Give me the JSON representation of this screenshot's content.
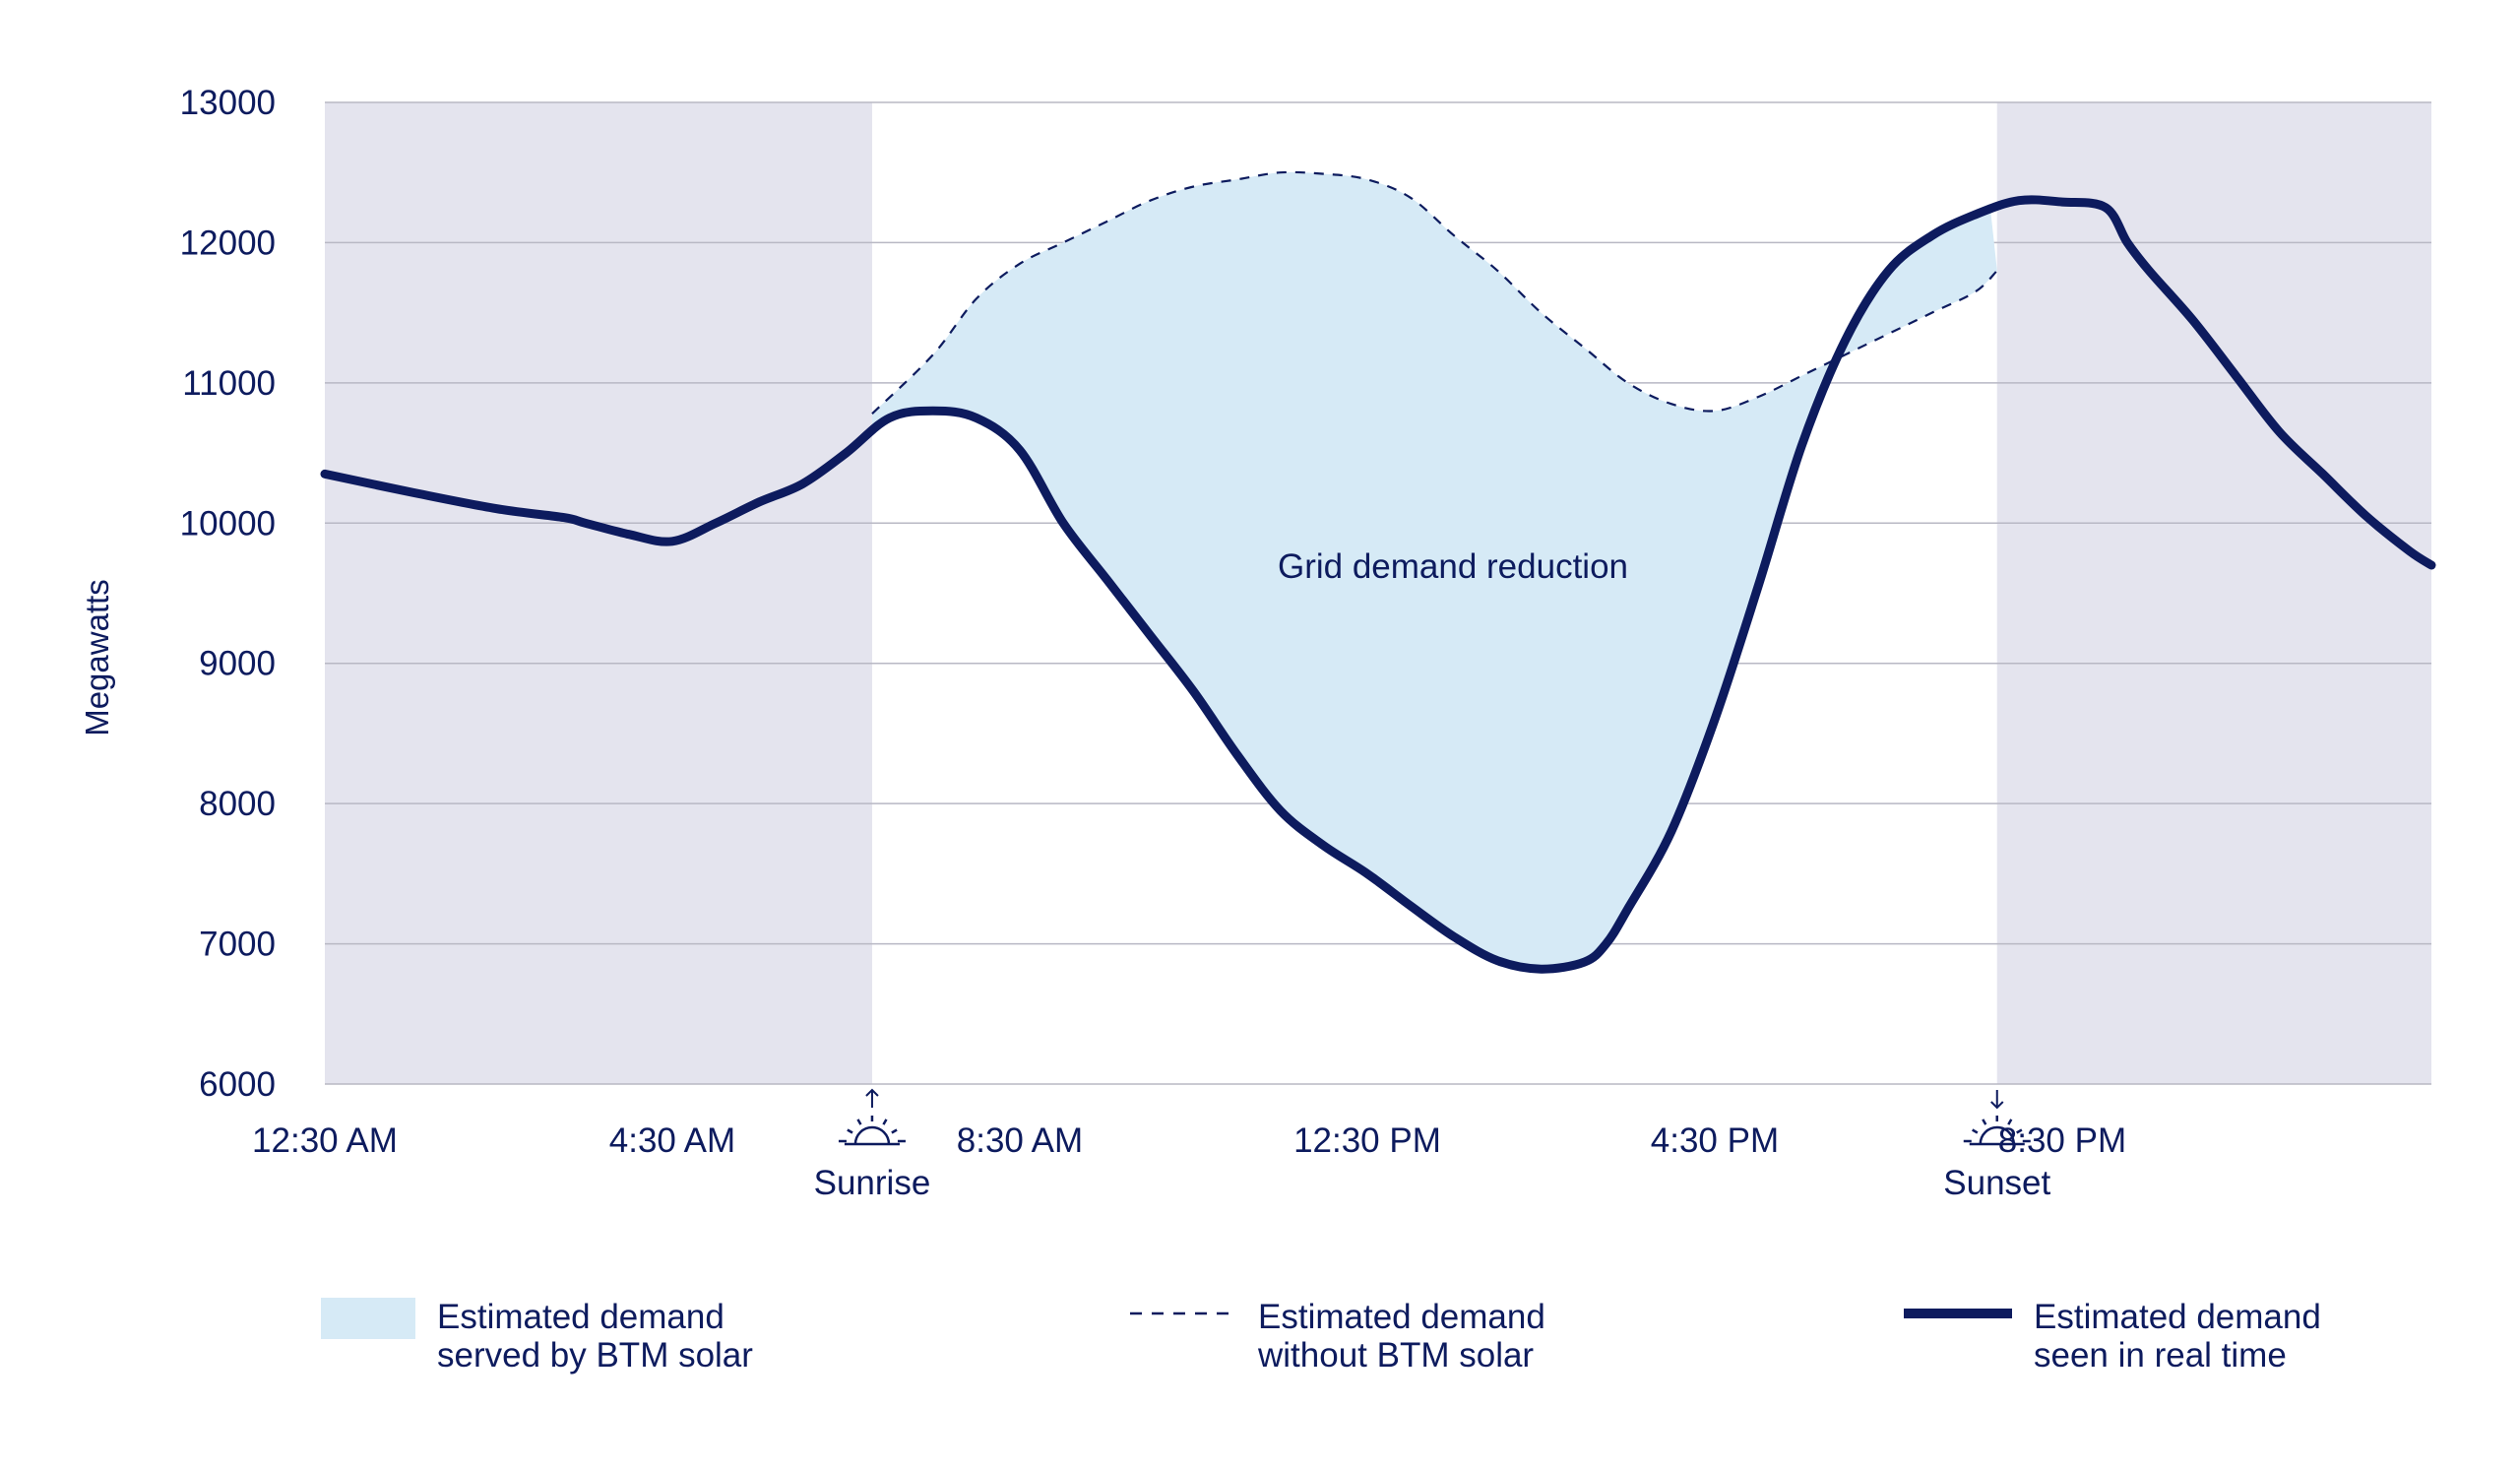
{
  "chart_data": {
    "type": "line",
    "ylabel": "Megawatts",
    "ylim": [
      6000,
      13000
    ],
    "yticks": [
      6000,
      7000,
      8000,
      9000,
      10000,
      11000,
      12000,
      13000
    ],
    "xlim": [
      0.5,
      24.75
    ],
    "xticks": [
      {
        "hour": 0.5,
        "label": "12:30 AM"
      },
      {
        "hour": 4.5,
        "label": "4:30 AM"
      },
      {
        "hour": 8.5,
        "label": "8:30 AM"
      },
      {
        "hour": 12.5,
        "label": "12:30 PM"
      },
      {
        "hour": 16.5,
        "label": "4:30 PM"
      },
      {
        "hour": 20.5,
        "label": "8:30 PM"
      }
    ],
    "night_shading": [
      [
        0.5,
        6.8
      ],
      [
        19.75,
        24.75
      ]
    ],
    "sunrise": {
      "hour": 6.8,
      "label": "Sunrise"
    },
    "sunset": {
      "hour": 19.75,
      "label": "Sunset"
    },
    "area_annotation": "Grid demand reduction",
    "series": [
      {
        "name": "Estimated demand seen in real time",
        "style": "solid",
        "x": [
          0.5,
          1.5,
          2.5,
          3.25,
          3.5,
          4.0,
          4.5,
          5.0,
          5.5,
          6.0,
          6.5,
          7.0,
          7.5,
          8.0,
          8.5,
          9.0,
          9.5,
          10.0,
          10.5,
          11.0,
          11.5,
          12.0,
          12.5,
          13.0,
          13.5,
          14.0,
          14.5,
          15.0,
          15.25,
          15.5,
          16.0,
          16.5,
          17.0,
          17.5,
          18.0,
          18.5,
          19.0,
          19.5,
          20.0,
          20.5,
          21.0,
          21.25,
          21.5,
          22.0,
          22.5,
          23.0,
          23.5,
          24.0,
          24.5,
          24.75
        ],
        "values": [
          10350,
          10220,
          10100,
          10040,
          10000,
          9920,
          9870,
          10000,
          10150,
          10280,
          10500,
          10750,
          10800,
          10750,
          10520,
          10000,
          9600,
          9200,
          8800,
          8350,
          7950,
          7700,
          7500,
          7270,
          7050,
          6880,
          6820,
          6870,
          7000,
          7250,
          7800,
          8600,
          9550,
          10550,
          11300,
          11800,
          12050,
          12200,
          12300,
          12290,
          12250,
          12000,
          11800,
          11450,
          11050,
          10650,
          10350,
          10050,
          9800,
          9700
        ]
      },
      {
        "name": "Estimated demand without BTM solar",
        "style": "dashed",
        "x": [
          6.8,
          7.5,
          8.0,
          8.5,
          9.0,
          9.5,
          10.0,
          10.5,
          11.0,
          11.5,
          12.0,
          12.5,
          13.0,
          13.5,
          14.0,
          14.5,
          15.0,
          15.5,
          16.0,
          16.5,
          17.0,
          17.5,
          18.0,
          18.5,
          19.0,
          19.5,
          19.75
        ],
        "values": [
          10780,
          11200,
          11600,
          11850,
          12000,
          12150,
          12300,
          12400,
          12450,
          12500,
          12490,
          12450,
          12320,
          12050,
          11800,
          11500,
          11250,
          11000,
          10850,
          10800,
          10900,
          11050,
          11200,
          11350,
          11500,
          11650,
          11800
        ]
      }
    ],
    "legend": [
      {
        "kind": "area",
        "line1": "Estimated demand",
        "line2": "served by BTM solar"
      },
      {
        "kind": "dashed",
        "line1": "Estimated demand",
        "line2": "without BTM solar"
      },
      {
        "kind": "solid",
        "line1": "Estimated demand",
        "line2": "seen in real time"
      }
    ],
    "colors": {
      "line": "#0d1b5e",
      "area": "#d6eaf6",
      "night": "#e4e4ee",
      "grid": "#b8b8c4"
    }
  }
}
